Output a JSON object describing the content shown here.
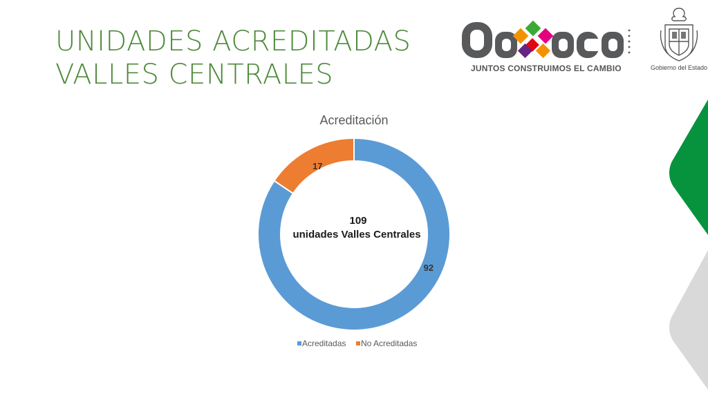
{
  "page": {
    "title_line1": "UNIDADES ACREDITADAS",
    "title_line2": "VALLES CENTRALES"
  },
  "logo": {
    "word": "Oaxaca",
    "tagline": "JUNTOS CONSTRUIMOS EL CAMBIO",
    "gov_label": "Gobierno del Estado",
    "brand_colors": {
      "grey": "#58595b",
      "green": "#3aaa35",
      "pink": "#e6007e",
      "orange": "#f39200",
      "purple": "#662483"
    }
  },
  "chart_data": {
    "type": "pie",
    "variant": "doughnut",
    "title": "Acreditación",
    "center_label_value": "109",
    "center_label_text": "unidades Valles Centrales",
    "slices": [
      {
        "name": "Acreditadas",
        "value": 92,
        "color": "#5b9bd5"
      },
      {
        "name": "No Acreditadas",
        "value": 17,
        "color": "#ed7d31"
      }
    ],
    "legend_position": "bottom"
  },
  "decor": {
    "green": "#07933e",
    "grey": "#d9d9d9"
  }
}
